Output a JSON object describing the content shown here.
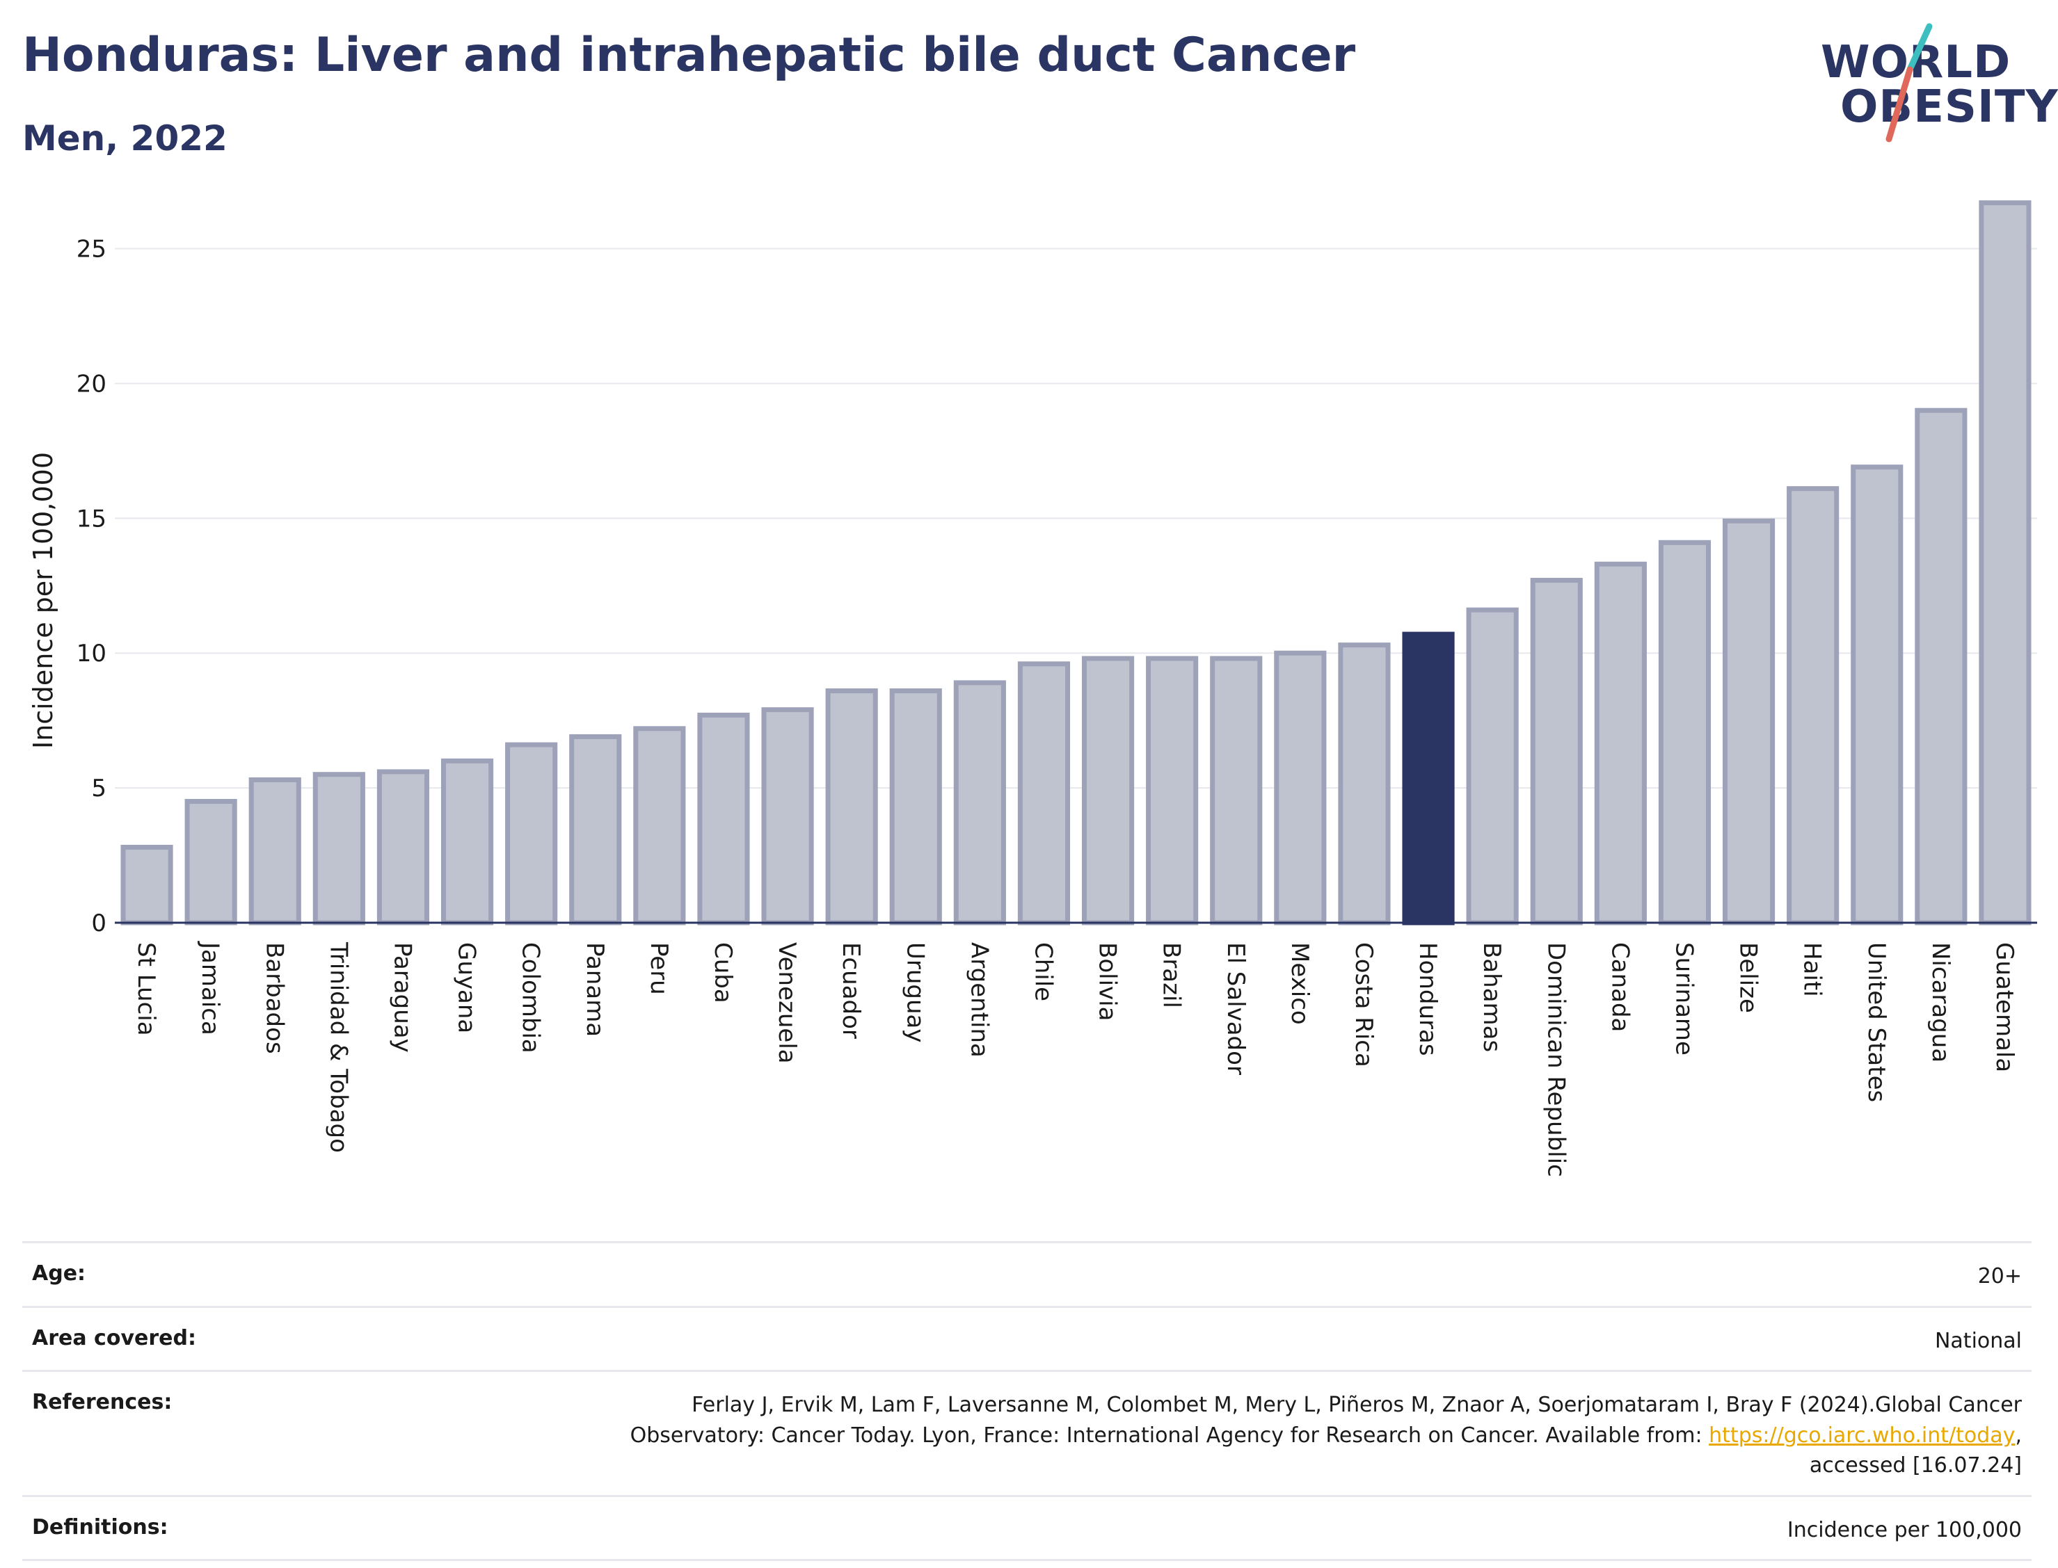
{
  "header": {
    "title": "Honduras: Liver and intrahepatic bile duct Cancer",
    "subtitle": "Men, 2022"
  },
  "logo": {
    "line1": "WORLD",
    "line2": "OBESITY",
    "slash_colors": [
      "#3dbfbf",
      "#e0685a"
    ]
  },
  "colors": {
    "bar": "#bfc2cf",
    "bar_stroke": "#9ea2b8",
    "highlight": "#2b3563",
    "grid": "#e6e8ee",
    "axis": "#2b3563"
  },
  "chart_data": {
    "type": "bar",
    "ylabel": "Incidence per 100,000",
    "xlabel": "",
    "ylim": [
      0,
      27
    ],
    "yticks": [
      0,
      5,
      10,
      15,
      20,
      25
    ],
    "grid": true,
    "highlight": "Honduras",
    "categories": [
      "St Lucia",
      "Jamaica",
      "Barbados",
      "Trinidad & Tobago",
      "Paraguay",
      "Guyana",
      "Colombia",
      "Panama",
      "Peru",
      "Cuba",
      "Venezuela",
      "Ecuador",
      "Uruguay",
      "Argentina",
      "Chile",
      "Bolivia",
      "Brazil",
      "El Salvador",
      "Mexico",
      "Costa Rica",
      "Honduras",
      "Bahamas",
      "Dominican Republic",
      "Canada",
      "Suriname",
      "Belize",
      "Haiti",
      "United States",
      "Nicaragua",
      "Guatemala"
    ],
    "values": [
      2.8,
      4.5,
      5.3,
      5.5,
      5.6,
      6.0,
      6.6,
      6.9,
      7.2,
      7.7,
      7.9,
      8.6,
      8.6,
      8.9,
      9.6,
      9.8,
      9.8,
      9.8,
      10.0,
      10.3,
      10.7,
      11.6,
      12.7,
      13.3,
      14.1,
      14.9,
      16.1,
      16.9,
      19.0,
      26.7
    ]
  },
  "info": {
    "age_label": "Age:",
    "age_value": "20+",
    "area_label": "Area covered:",
    "area_value": "National",
    "references_label": "References:",
    "references_text": "Ferlay J, Ervik M, Lam F, Laversanne M, Colombet M, Mery L, Piñeros M, Znaor A, Soerjomataram I, Bray F (2024).Global Cancer Observatory: Cancer Today. Lyon, France: International Agency for Research on Cancer. Available from:",
    "references_link": "https://gco.iarc.who.int/today",
    "references_tail": ", accessed [16.07.24]",
    "definitions_label": "Definitions:",
    "definitions_value": "Incidence per 100,000"
  }
}
